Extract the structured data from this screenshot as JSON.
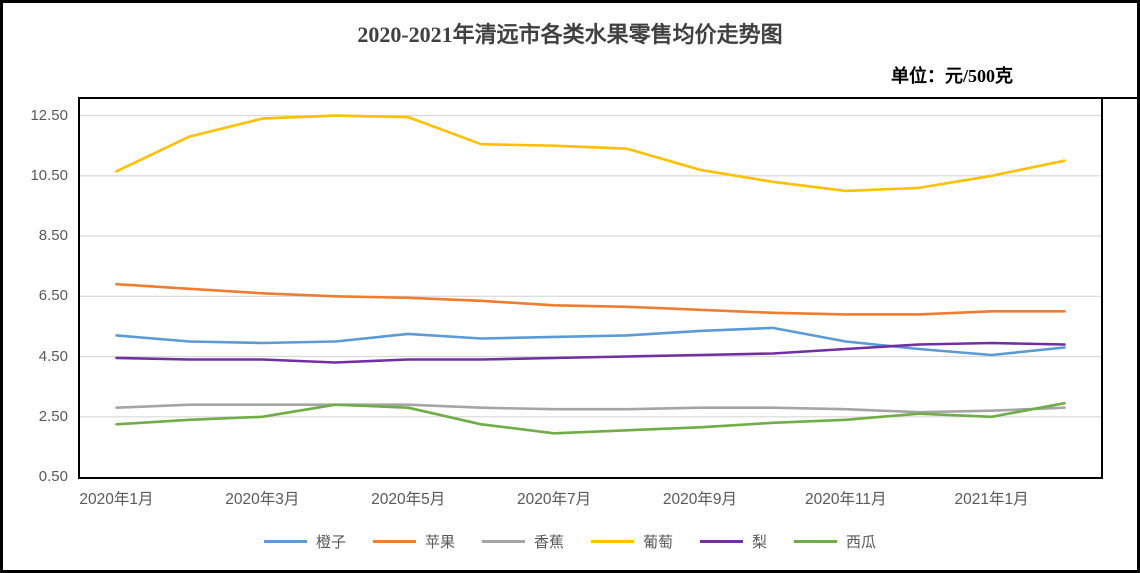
{
  "header": {
    "title": "2020-2021年清远市各类水果零售均价走势图",
    "unit_label": "单位：元/500克"
  },
  "chart_data": {
    "type": "line",
    "title": "2020-2021年清远市各类水果零售均价走势图",
    "unit": "元/500克",
    "categories": [
      "2020年1月",
      "2020年2月",
      "2020年3月",
      "2020年4月",
      "2020年5月",
      "2020年6月",
      "2020年7月",
      "2020年8月",
      "2020年9月",
      "2020年10月",
      "2020年11月",
      "2020年12月",
      "2021年1月",
      "2021年2月"
    ],
    "x_tick_labels": [
      "2020年1月",
      "2020年3月",
      "2020年5月",
      "2020年7月",
      "2020年9月",
      "2020年11月",
      "2021年1月"
    ],
    "y_tick_labels": [
      "0.50",
      "2.50",
      "4.50",
      "6.50",
      "8.50",
      "10.50",
      "12.50"
    ],
    "y_ticks": [
      0.5,
      2.5,
      4.5,
      6.5,
      8.5,
      10.5,
      12.5
    ],
    "ylim": [
      0.5,
      13.05
    ],
    "grid": true,
    "legend_position": "bottom",
    "colors": {
      "grid_line": "#d9d9d9",
      "axis_text": "#595959",
      "border": "#000000"
    },
    "series": [
      {
        "name": "橙子",
        "slug": "orange",
        "color": "#5B9BD5",
        "values": [
          5.2,
          5.0,
          4.95,
          5.0,
          5.25,
          5.1,
          5.15,
          5.2,
          5.35,
          5.45,
          5.0,
          4.75,
          4.55,
          4.8
        ]
      },
      {
        "name": "苹果",
        "slug": "apple",
        "color": "#ED7D31",
        "values": [
          6.9,
          6.75,
          6.6,
          6.5,
          6.45,
          6.35,
          6.2,
          6.15,
          6.05,
          5.95,
          5.9,
          5.9,
          6.0,
          6.0
        ]
      },
      {
        "name": "香蕉",
        "slug": "banana",
        "color": "#A5A5A5",
        "values": [
          2.8,
          2.9,
          2.9,
          2.9,
          2.9,
          2.8,
          2.75,
          2.75,
          2.8,
          2.8,
          2.75,
          2.65,
          2.7,
          2.8
        ]
      },
      {
        "name": "葡萄",
        "slug": "grape",
        "color": "#FFC000",
        "values": [
          10.65,
          11.8,
          12.4,
          12.5,
          12.45,
          11.55,
          11.5,
          11.4,
          10.7,
          10.3,
          10.0,
          10.1,
          10.5,
          11.0
        ]
      },
      {
        "name": "梨",
        "slug": "pear",
        "color": "#7030A0",
        "values": [
          4.45,
          4.4,
          4.4,
          4.3,
          4.4,
          4.4,
          4.45,
          4.5,
          4.55,
          4.6,
          4.75,
          4.9,
          4.95,
          4.9
        ]
      },
      {
        "name": "西瓜",
        "slug": "watermelon",
        "color": "#70AD47",
        "values": [
          2.25,
          2.4,
          2.5,
          2.9,
          2.8,
          2.25,
          1.95,
          2.05,
          2.15,
          2.3,
          2.4,
          2.6,
          2.5,
          2.95
        ]
      }
    ]
  }
}
